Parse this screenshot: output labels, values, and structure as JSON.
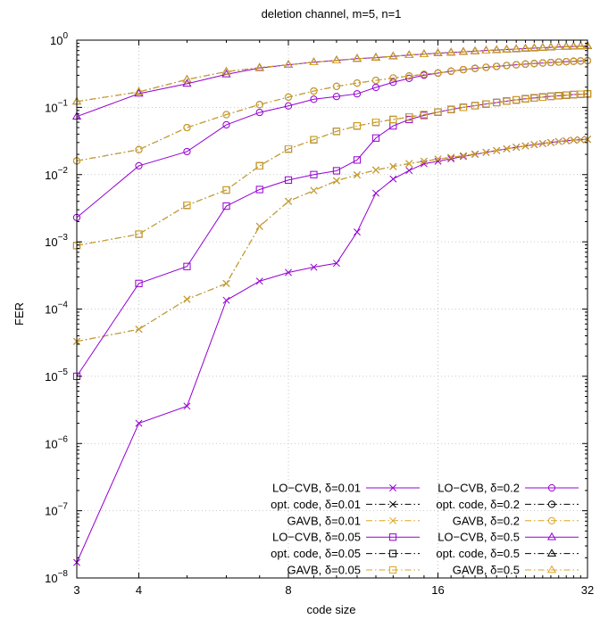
{
  "chart_data": {
    "type": "line",
    "title": "deletion channel, m=5, n=1",
    "xlabel": "code size",
    "ylabel": "FER",
    "xscale": "log",
    "yscale": "log",
    "xlim": [
      3,
      32
    ],
    "ylim": [
      1e-08,
      1
    ],
    "x_ticks": [
      {
        "value": 3,
        "label": "3"
      },
      {
        "value": 4,
        "label": "4"
      },
      {
        "value": 8,
        "label": "8"
      },
      {
        "value": 16,
        "label": "16"
      },
      {
        "value": 32,
        "label": "32"
      }
    ],
    "y_ticks": [
      {
        "value": 1e-08,
        "base": "10",
        "exp": "−8"
      },
      {
        "value": 1e-07,
        "base": "10",
        "exp": "−7"
      },
      {
        "value": 1e-06,
        "base": "10",
        "exp": "−6"
      },
      {
        "value": 1e-05,
        "base": "10",
        "exp": "−5"
      },
      {
        "value": 0.0001,
        "base": "10",
        "exp": "−4"
      },
      {
        "value": 0.001,
        "base": "10",
        "exp": "−3"
      },
      {
        "value": 0.01,
        "base": "10",
        "exp": "−2"
      },
      {
        "value": 0.1,
        "base": "10",
        "exp": "−1"
      },
      {
        "value": 1,
        "base": "10",
        "exp": "0"
      }
    ],
    "grid": true,
    "legend_position": "bottom-right",
    "series": [
      {
        "name": "LO−CVB, δ=0.01",
        "color": "#9400d3",
        "marker": "x",
        "dash": "solid",
        "x": [
          3,
          4,
          5,
          6,
          7,
          8,
          9,
          10,
          11,
          12,
          13,
          14,
          15,
          16,
          17,
          18,
          19,
          20,
          21,
          22,
          23,
          24,
          25,
          26,
          27,
          28,
          29,
          30,
          31,
          32
        ],
        "y": [
          1.7e-08,
          2e-06,
          3.6e-06,
          0.000135,
          0.00026,
          0.00035,
          0.00042,
          0.00048,
          0.0014,
          0.0053,
          0.0086,
          0.0115,
          0.0145,
          0.0158,
          0.0172,
          0.0186,
          0.02,
          0.0214,
          0.0228,
          0.0242,
          0.0255,
          0.0267,
          0.0279,
          0.029,
          0.03,
          0.031,
          0.0318,
          0.0325,
          0.033,
          0.0335
        ]
      },
      {
        "name": "opt. code, δ=0.01",
        "color": "#000000",
        "marker": "x",
        "dash": "dashdot",
        "x": [
          3,
          4,
          5,
          6,
          7,
          8,
          9,
          10,
          11,
          12,
          13,
          14,
          15,
          16,
          17,
          18,
          19,
          20,
          21,
          22,
          23,
          24,
          25,
          26,
          27,
          28,
          29,
          30,
          31,
          32
        ],
        "y": [
          3.3e-05,
          5e-05,
          0.00014,
          0.00024,
          0.0017,
          0.004,
          0.0058,
          0.0081,
          0.0099,
          0.0117,
          0.0132,
          0.0146,
          0.0158,
          0.017,
          0.018,
          0.0191,
          0.0202,
          0.0214,
          0.0228,
          0.0242,
          0.0255,
          0.0267,
          0.0279,
          0.029,
          0.03,
          0.031,
          0.0318,
          0.0325,
          0.033,
          0.0335
        ]
      },
      {
        "name": "GAVB, δ=0.01",
        "color": "#daa520",
        "marker": "x",
        "dash": "dashdot",
        "x": [
          3,
          4,
          5,
          6,
          7,
          8,
          9,
          10,
          11,
          12,
          13,
          14,
          15,
          16,
          17,
          18,
          19,
          20,
          21,
          22,
          23,
          24,
          25,
          26,
          27,
          28,
          29,
          30,
          31,
          32
        ],
        "y": [
          3.3e-05,
          5e-05,
          0.00014,
          0.00024,
          0.0017,
          0.004,
          0.0058,
          0.0081,
          0.0099,
          0.0117,
          0.0132,
          0.0146,
          0.0158,
          0.017,
          0.018,
          0.0191,
          0.0202,
          0.0214,
          0.0228,
          0.0242,
          0.0255,
          0.0267,
          0.0279,
          0.029,
          0.03,
          0.031,
          0.0318,
          0.0325,
          0.033,
          0.0335
        ]
      },
      {
        "name": "LO−CVB, δ=0.05",
        "color": "#9400d3",
        "marker": "square",
        "dash": "solid",
        "x": [
          3,
          4,
          5,
          6,
          7,
          8,
          9,
          10,
          11,
          12,
          13,
          14,
          15,
          16,
          17,
          18,
          19,
          20,
          21,
          22,
          23,
          24,
          25,
          26,
          27,
          28,
          29,
          30,
          31,
          32
        ],
        "y": [
          1e-05,
          0.00024,
          0.00043,
          0.0034,
          0.006,
          0.0083,
          0.01,
          0.0114,
          0.0165,
          0.035,
          0.053,
          0.066,
          0.076,
          0.085,
          0.093,
          0.1,
          0.106,
          0.112,
          0.118,
          0.124,
          0.129,
          0.134,
          0.138,
          0.142,
          0.146,
          0.149,
          0.152,
          0.155,
          0.157,
          0.159
        ]
      },
      {
        "name": "opt. code, δ=0.05",
        "color": "#000000",
        "marker": "square",
        "dash": "dashdot",
        "x": [
          3,
          4,
          5,
          6,
          7,
          8,
          9,
          10,
          11,
          12,
          13,
          14,
          15,
          16,
          17,
          18,
          19,
          20,
          21,
          22,
          23,
          24,
          25,
          26,
          27,
          28,
          29,
          30,
          31,
          32
        ],
        "y": [
          0.00088,
          0.0013,
          0.0035,
          0.0059,
          0.0135,
          0.024,
          0.033,
          0.044,
          0.053,
          0.06,
          0.066,
          0.072,
          0.078,
          0.085,
          0.093,
          0.1,
          0.106,
          0.112,
          0.118,
          0.124,
          0.129,
          0.134,
          0.138,
          0.142,
          0.146,
          0.149,
          0.152,
          0.155,
          0.157,
          0.159
        ]
      },
      {
        "name": "GAVB, δ=0.05",
        "color": "#daa520",
        "marker": "square",
        "dash": "dashdot",
        "x": [
          3,
          4,
          5,
          6,
          7,
          8,
          9,
          10,
          11,
          12,
          13,
          14,
          15,
          16,
          17,
          18,
          19,
          20,
          21,
          22,
          23,
          24,
          25,
          26,
          27,
          28,
          29,
          30,
          31,
          32
        ],
        "y": [
          0.00088,
          0.0013,
          0.0035,
          0.0059,
          0.0135,
          0.024,
          0.033,
          0.044,
          0.053,
          0.06,
          0.066,
          0.072,
          0.078,
          0.085,
          0.093,
          0.1,
          0.106,
          0.112,
          0.118,
          0.124,
          0.129,
          0.134,
          0.138,
          0.142,
          0.146,
          0.149,
          0.152,
          0.155,
          0.157,
          0.159
        ]
      },
      {
        "name": "LO−CVB, δ=0.2",
        "color": "#9400d3",
        "marker": "circle",
        "dash": "solid",
        "x": [
          3,
          4,
          5,
          6,
          7,
          8,
          9,
          10,
          11,
          12,
          13,
          14,
          15,
          16,
          17,
          18,
          19,
          20,
          21,
          22,
          23,
          24,
          25,
          26,
          27,
          28,
          29,
          30,
          31,
          32
        ],
        "y": [
          0.0023,
          0.0135,
          0.022,
          0.055,
          0.084,
          0.105,
          0.132,
          0.145,
          0.159,
          0.198,
          0.236,
          0.27,
          0.3,
          0.323,
          0.345,
          0.364,
          0.38,
          0.394,
          0.407,
          0.419,
          0.43,
          0.44,
          0.449,
          0.457,
          0.465,
          0.472,
          0.479,
          0.485,
          0.49,
          0.495
        ]
      },
      {
        "name": "opt. code, δ=0.2",
        "color": "#000000",
        "marker": "circle",
        "dash": "dashdot",
        "x": [
          3,
          4,
          5,
          6,
          7,
          8,
          9,
          10,
          11,
          12,
          13,
          14,
          15,
          16,
          17,
          18,
          19,
          20,
          21,
          22,
          23,
          24,
          25,
          26,
          27,
          28,
          29,
          30,
          31,
          32
        ],
        "y": [
          0.016,
          0.0235,
          0.05,
          0.078,
          0.11,
          0.142,
          0.175,
          0.205,
          0.23,
          0.252,
          0.273,
          0.293,
          0.31,
          0.325,
          0.345,
          0.364,
          0.38,
          0.394,
          0.407,
          0.419,
          0.43,
          0.44,
          0.449,
          0.457,
          0.465,
          0.472,
          0.479,
          0.485,
          0.49,
          0.495
        ]
      },
      {
        "name": "GAVB, δ=0.2",
        "color": "#daa520",
        "marker": "circle",
        "dash": "dashdot",
        "x": [
          3,
          4,
          5,
          6,
          7,
          8,
          9,
          10,
          11,
          12,
          13,
          14,
          15,
          16,
          17,
          18,
          19,
          20,
          21,
          22,
          23,
          24,
          25,
          26,
          27,
          28,
          29,
          30,
          31,
          32
        ],
        "y": [
          0.016,
          0.0235,
          0.05,
          0.078,
          0.11,
          0.142,
          0.175,
          0.205,
          0.23,
          0.252,
          0.273,
          0.293,
          0.31,
          0.325,
          0.345,
          0.364,
          0.38,
          0.394,
          0.407,
          0.419,
          0.43,
          0.44,
          0.449,
          0.457,
          0.465,
          0.472,
          0.479,
          0.485,
          0.49,
          0.495
        ]
      },
      {
        "name": "LO−CVB, δ=0.5",
        "color": "#9400d3",
        "marker": "triangle",
        "dash": "solid",
        "x": [
          3,
          4,
          5,
          6,
          7,
          8,
          9,
          10,
          11,
          12,
          13,
          14,
          15,
          16,
          17,
          18,
          19,
          20,
          21,
          22,
          23,
          24,
          25,
          26,
          27,
          28,
          29,
          30,
          31,
          32
        ],
        "y": [
          0.073,
          0.16,
          0.225,
          0.31,
          0.385,
          0.43,
          0.47,
          0.5,
          0.53,
          0.55,
          0.575,
          0.6,
          0.62,
          0.64,
          0.655,
          0.67,
          0.685,
          0.7,
          0.712,
          0.725,
          0.737,
          0.75,
          0.76,
          0.77,
          0.78,
          0.79,
          0.798,
          0.805,
          0.812,
          0.82
        ]
      },
      {
        "name": "opt. code, δ=0.5",
        "color": "#000000",
        "marker": "triangle",
        "dash": "dashdot",
        "x": [
          3,
          4,
          5,
          6,
          7,
          8,
          9,
          10,
          11,
          12,
          13,
          14,
          15,
          16,
          17,
          18,
          19,
          20,
          21,
          22,
          23,
          24,
          25,
          26,
          27,
          28,
          29,
          30,
          31,
          32
        ],
        "y": [
          0.122,
          0.17,
          0.26,
          0.34,
          0.39,
          0.43,
          0.47,
          0.5,
          0.53,
          0.55,
          0.575,
          0.6,
          0.62,
          0.64,
          0.655,
          0.67,
          0.685,
          0.7,
          0.712,
          0.725,
          0.737,
          0.75,
          0.76,
          0.77,
          0.78,
          0.79,
          0.798,
          0.805,
          0.812,
          0.82
        ]
      },
      {
        "name": "GAVB, δ=0.5",
        "color": "#daa520",
        "marker": "triangle",
        "dash": "dashdot",
        "x": [
          3,
          4,
          5,
          6,
          7,
          8,
          9,
          10,
          11,
          12,
          13,
          14,
          15,
          16,
          17,
          18,
          19,
          20,
          21,
          22,
          23,
          24,
          25,
          26,
          27,
          28,
          29,
          30,
          31,
          32
        ],
        "y": [
          0.122,
          0.17,
          0.26,
          0.34,
          0.39,
          0.43,
          0.47,
          0.5,
          0.53,
          0.55,
          0.575,
          0.6,
          0.62,
          0.64,
          0.655,
          0.67,
          0.685,
          0.7,
          0.712,
          0.725,
          0.737,
          0.75,
          0.76,
          0.77,
          0.78,
          0.79,
          0.798,
          0.805,
          0.812,
          0.82
        ]
      }
    ]
  }
}
